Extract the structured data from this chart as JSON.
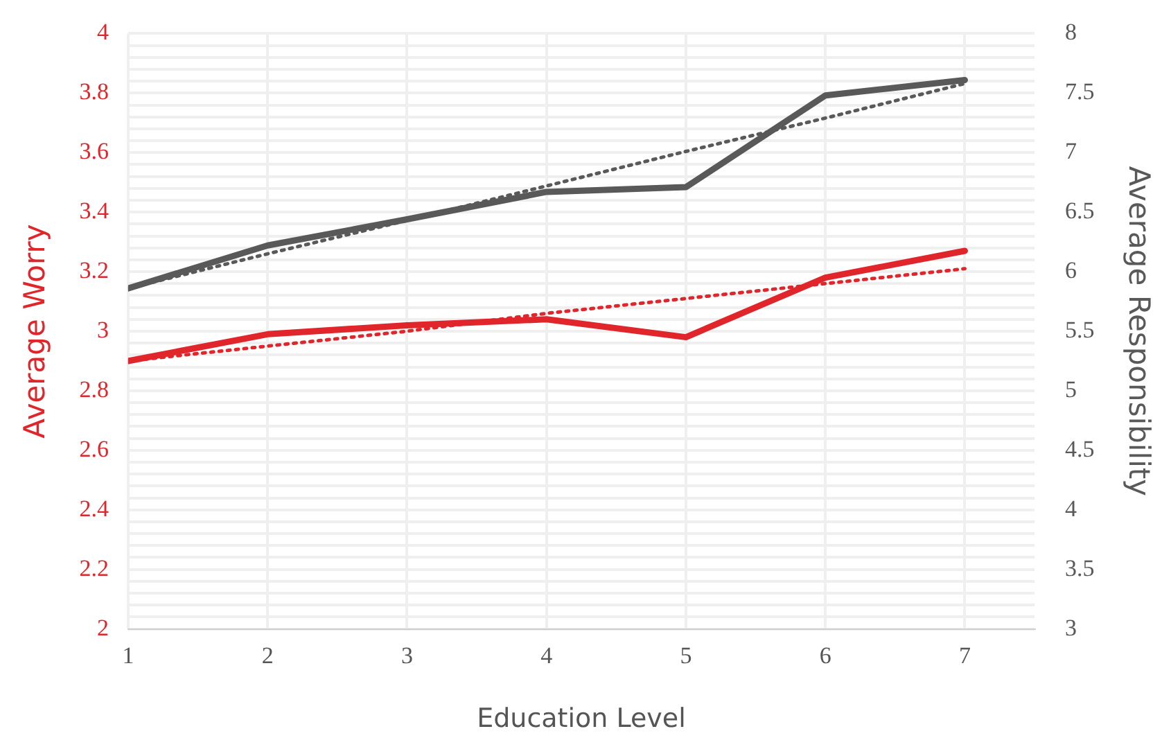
{
  "chart_data": {
    "type": "line",
    "xlabel": "Education Level",
    "ylabel": "Average Worry",
    "y2label": "Average Responsibility",
    "x": [
      1,
      2,
      3,
      4,
      5,
      6,
      7
    ],
    "xlim": [
      1,
      7.5
    ],
    "xticks": [
      1,
      2,
      3,
      4,
      5,
      6,
      7
    ],
    "ylim": [
      2,
      4
    ],
    "yticks": [
      2,
      {
        "value": 2.04,
        "label": null
      },
      {
        "value": 2.08,
        "label": null
      },
      {
        "value": 2.12,
        "label": null
      },
      {
        "value": 2.16,
        "label": null
      },
      2.2,
      {
        "value": 2.24,
        "label": null
      },
      {
        "value": 2.28,
        "label": null
      },
      {
        "value": 2.32,
        "label": null
      },
      {
        "value": 2.36,
        "label": null
      },
      2.4,
      {
        "value": 2.44,
        "label": null
      },
      {
        "value": 2.48,
        "label": null
      },
      {
        "value": 2.52,
        "label": null
      },
      {
        "value": 2.56,
        "label": null
      },
      2.6,
      {
        "value": 2.64,
        "label": null
      },
      {
        "value": 2.68,
        "label": null
      },
      {
        "value": 2.72,
        "label": null
      },
      {
        "value": 2.76,
        "label": null
      },
      2.8,
      {
        "value": 2.84,
        "label": null
      },
      {
        "value": 2.88,
        "label": null
      },
      {
        "value": 2.92,
        "label": null
      },
      {
        "value": 2.96,
        "label": null
      },
      3,
      {
        "value": 3.04,
        "label": null
      },
      {
        "value": 3.08,
        "label": null
      },
      {
        "value": 3.12,
        "label": null
      },
      {
        "value": 3.16,
        "label": null
      },
      3.2,
      {
        "value": 3.24,
        "label": null
      },
      {
        "value": 3.28,
        "label": null
      },
      {
        "value": 3.32,
        "label": null
      },
      {
        "value": 3.36,
        "label": null
      },
      3.4,
      {
        "value": 3.44,
        "label": null
      },
      {
        "value": 3.48,
        "label": null
      },
      {
        "value": 3.52,
        "label": null
      },
      {
        "value": 3.56,
        "label": null
      },
      3.6,
      {
        "value": 3.64,
        "label": null
      },
      {
        "value": 3.68,
        "label": null
      },
      {
        "value": 3.72,
        "label": null
      },
      {
        "value": 3.76,
        "label": null
      },
      3.8,
      {
        "value": 3.84,
        "label": null
      },
      {
        "value": 3.88,
        "label": null
      },
      {
        "value": 3.92,
        "label": null
      },
      {
        "value": 3.96,
        "label": null
      },
      4
    ],
    "y2lim": [
      3,
      8
    ],
    "y2ticks": [
      3,
      3.5,
      4,
      4.5,
      5,
      5.5,
      6,
      6.5,
      7,
      7.5,
      8
    ],
    "grid": true,
    "legend": false,
    "marker": "none",
    "series": [
      {
        "color": "#e0252b",
        "values": [
          2.9,
          2.99,
          3.02,
          3.04,
          2.98,
          3.18,
          3.27
        ],
        "line_style": "solid"
      },
      {
        "color": "#595959",
        "values": [
          5.86,
          6.22,
          6.44,
          6.67,
          6.71,
          7.48,
          7.61
        ],
        "axis": "y2",
        "line_style": "solid"
      },
      {
        "type": "line",
        "color": "#e0252b",
        "values": [
          2.9,
          2.95,
          3.0,
          3.06,
          3.11,
          3.16,
          3.21
        ],
        "line_style": "dotted"
      },
      {
        "type": "line",
        "color": "#595959",
        "values": [
          5.86,
          6.15,
          6.43,
          6.72,
          7.01,
          7.29,
          7.58
        ],
        "axis": "y2",
        "line_style": "dotted"
      }
    ]
  }
}
